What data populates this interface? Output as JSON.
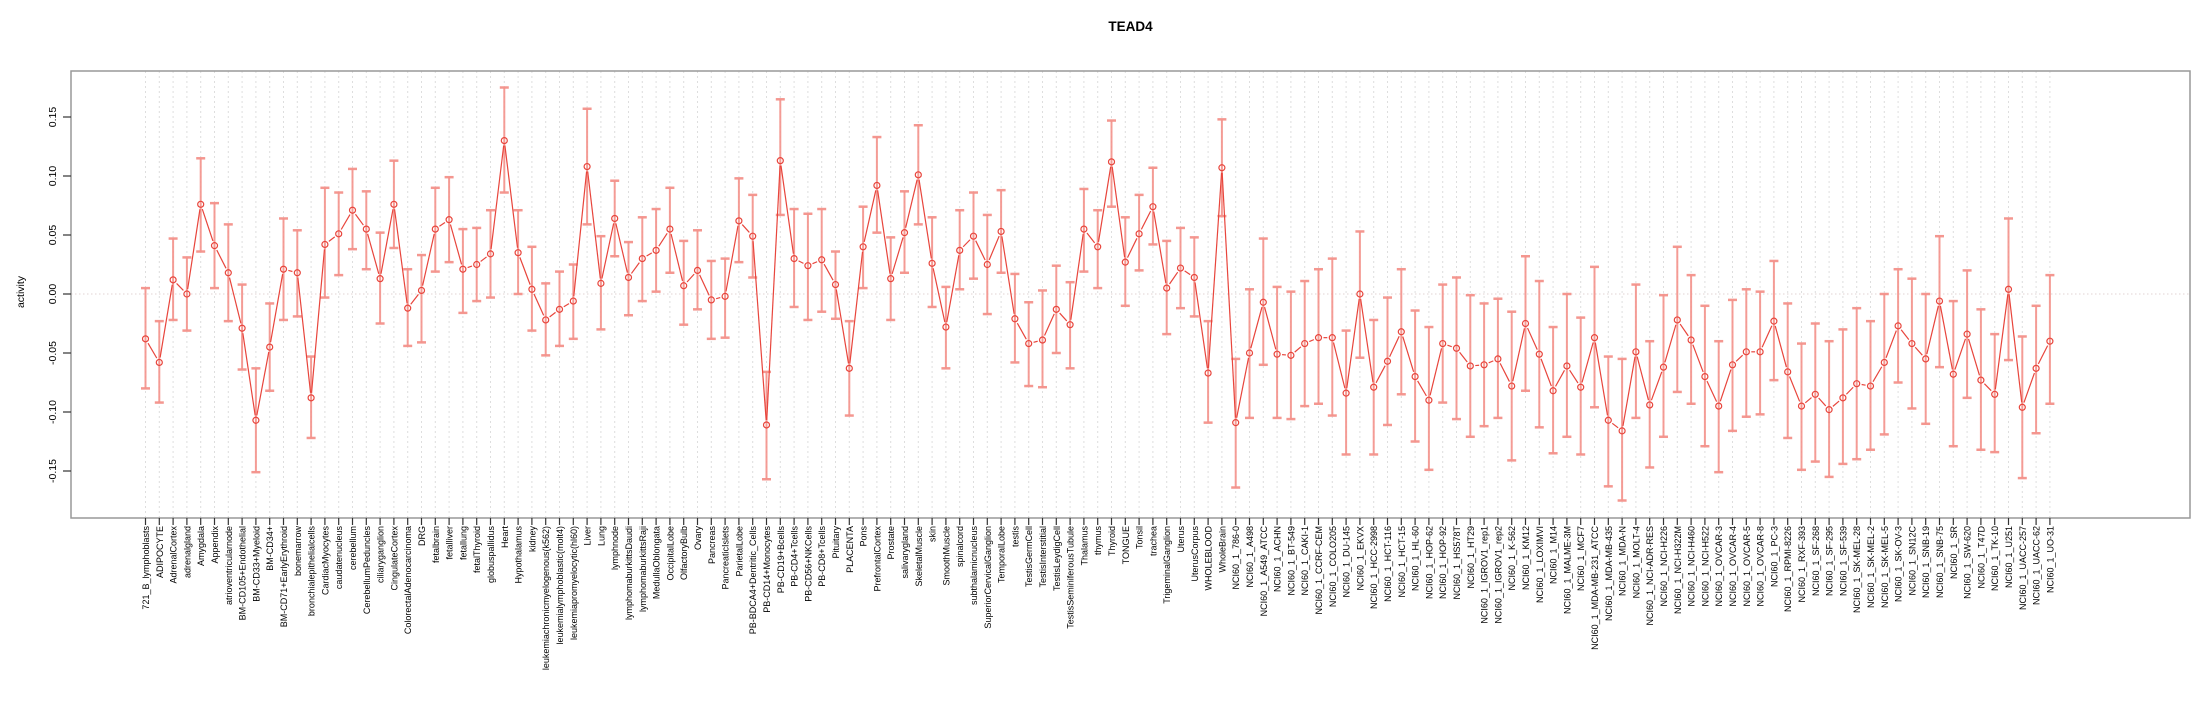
{
  "title": "TEAD4",
  "colors": {
    "point": "#e8453c",
    "line": "#e8453c",
    "error_bar": "#f4928b",
    "grid": "#dedede",
    "zero_line": "#e2d3d3",
    "box_border": "#999999",
    "tick": "#333333",
    "label_text": "#000000"
  },
  "chart_data": {
    "type": "line",
    "title": "TEAD4",
    "xlabel": "",
    "ylabel": "activity",
    "ylim": [
      -0.185,
      0.189
    ],
    "yticks": [
      -0.15,
      -0.1,
      -0.05,
      0.0,
      0.05,
      0.1,
      0.15
    ],
    "ytick_labels": [
      "-0.15",
      "-0.10",
      "-0.05",
      "0.00",
      "0.05",
      "0.10",
      "0.15"
    ],
    "grid": true,
    "legend": "none",
    "marker": "open-circle",
    "error_bars": true,
    "categories": [
      "721_B_lymphoblasts",
      "ADIPOCYTE",
      "AdrenalCortex",
      "adrenalgland",
      "Amygdala",
      "Appendix",
      "atrioventricularnode",
      "BM-CD105+Endothelial",
      "BM-CD33+Myeloid",
      "BM-CD34+",
      "BM-CD71+EarlyErythroid",
      "bonemarrow",
      "bronchialepithelialcells",
      "CardiacMyocytes",
      "caudatenucleus",
      "cerebellum",
      "CerebellumPeduncles",
      "ciliaryganglion",
      "CingulateCortex",
      "ColorectalAdenocarcinoma",
      "DRG",
      "fetalbrain",
      "fetalliver",
      "fetallung",
      "fetalThyroid",
      "globuspallidus",
      "Heart",
      "Hypothalamus",
      "kidney",
      "leukemiachronicmyelogenous(k562)",
      "leukemialymphoblastic(molt4)",
      "leukemiapromyelocytic(hl60)",
      "Liver",
      "Lung",
      "lymphnode",
      "lymphomaburkittsDaudi",
      "lymphomaburkittsRaji",
      "MedullaOblongata",
      "OccipitalLobe",
      "OlfactoryBulb",
      "Ovary",
      "Pancreas",
      "PancreaticIslets",
      "ParietalLobe",
      "PB-BDCA4+Dentritic_Cells",
      "PB-CD14+Monocytes",
      "PB-CD19+Bcells",
      "PB-CD4+Tcells",
      "PB-CD56+NKCells",
      "PB-CD8+Tcells",
      "Pituitary",
      "PLACENTA",
      "Pons",
      "PrefrontalCortex",
      "Prostate",
      "salivarygland",
      "SkeletalMuscle",
      "skin",
      "SmoothMuscle",
      "spinalcord",
      "subthalamicnucleus",
      "SuperiorCervicalGanglion",
      "TemporalLobe",
      "testis",
      "TestisGermCell",
      "TestisInterstitial",
      "TestisLeydigCell",
      "TestisSeminiferousTubule",
      "Thalamus",
      "thymus",
      "Thyroid",
      "TONGUE",
      "Tonsil",
      "trachea",
      "TrigeminalGanglion",
      "Uterus",
      "UterusCorpus",
      "WHOLEBLOOD",
      "WholeBrain",
      "NCI60_1_786-0",
      "NCI60_1_A498",
      "NCI60_1_A549_ATCC",
      "NCI60_1_ACHN",
      "NCI60_1_BT-549",
      "NCI60_1_CAKI-1",
      "NCI60_1_CCRF-CEM",
      "NCI60_1_COLO205",
      "NCI60_1_DU-145",
      "NCI60_1_EKVX",
      "NCI60_1_HCC-2998",
      "NCI60_1_HCT-116",
      "NCI60_1_HCT-15",
      "NCI60_1_HL-60",
      "NCI60_1_HOP-62",
      "NCI60_1_HOP-92",
      "NCI60_1_HS578T",
      "NCI60_1_HT29",
      "NCI60_1_IGROV1_rep1",
      "NCI60_1_IGROV1_rep2",
      "NCI60_1_K-562",
      "NCI60_1_KM12",
      "NCI60_1_LOXIMVI",
      "NCI60_1_M14",
      "NCI60_1_MALME-3M",
      "NCI60_1_MCF7",
      "NCI60_1_MDA-MB-231_ATCC",
      "NCI60_1_MDA-MB-435",
      "NCI60_1_MDA-N",
      "NCI60_1_MOLT-4",
      "NCI60_1_NCI-ADR-RES",
      "NCI60_1_NCI-H226",
      "NCI60_1_NCI-H322M",
      "NCI60_1_NCI-H460",
      "NCI60_1_NCI-H522",
      "NCI60_1_OVCAR-3",
      "NCI60_1_OVCAR-4",
      "NCI60_1_OVCAR-5",
      "NCI60_1_OVCAR-8",
      "NCI60_1_PC-3",
      "NCI60_1_RPMI-8226",
      "NCI60_1_RXF-393",
      "NCI60_1_SF-268",
      "NCI60_1_SF-295",
      "NCI60_1_SF-539",
      "NCI60_1_SK-MEL-28",
      "NCI60_1_SK-MEL-2",
      "NCI60_1_SK-MEL-5",
      "NCI60_1_SK-OV-3",
      "NCI60_1_SN12C",
      "NCI60_1_SNB-19",
      "NCI60_1_SNB-75",
      "NCI60_1_SR",
      "NCI60_1_SW-620",
      "NCI60_1_T47D",
      "NCI60_1_TK-10",
      "NCI60_1_U251",
      "NCI60_1_UACC-257",
      "NCI60_1_UACC-62",
      "NCI60_1_UO-31"
    ],
    "series": [
      {
        "name": "activity",
        "values": [
          -0.038,
          -0.058,
          0.012,
          0.0,
          0.076,
          0.041,
          0.018,
          -0.029,
          -0.107,
          -0.045,
          0.021,
          0.018,
          -0.088,
          0.042,
          0.051,
          0.071,
          0.055,
          0.013,
          0.076,
          -0.012,
          0.003,
          0.055,
          0.063,
          0.021,
          0.025,
          0.034,
          0.13,
          0.035,
          0.004,
          -0.022,
          -0.013,
          -0.006,
          0.108,
          0.009,
          0.064,
          0.014,
          0.03,
          0.037,
          0.055,
          0.007,
          0.02,
          -0.005,
          -0.002,
          0.062,
          0.049,
          -0.111,
          0.113,
          0.03,
          0.024,
          0.029,
          0.008,
          -0.063,
          0.04,
          0.092,
          0.013,
          0.052,
          0.101,
          0.026,
          -0.028,
          0.037,
          0.049,
          0.025,
          0.053,
          -0.021,
          -0.042,
          -0.039,
          -0.013,
          -0.026,
          0.055,
          0.04,
          0.112,
          0.027,
          0.051,
          0.074,
          0.005,
          0.022,
          0.014,
          -0.067,
          0.107,
          -0.109,
          -0.05,
          -0.007,
          -0.051,
          -0.052,
          -0.042,
          -0.037,
          -0.037,
          -0.084,
          0.0,
          -0.079,
          -0.057,
          -0.032,
          -0.07,
          -0.09,
          -0.042,
          -0.046,
          -0.061,
          -0.06,
          -0.055,
          -0.078,
          -0.025,
          -0.051,
          -0.082,
          -0.061,
          -0.079,
          -0.037,
          -0.107,
          -0.116,
          -0.049,
          -0.094,
          -0.062,
          -0.022,
          -0.039,
          -0.07,
          -0.095,
          -0.06,
          -0.049,
          -0.049,
          -0.023,
          -0.066,
          -0.095,
          -0.085,
          -0.098,
          -0.088,
          -0.076,
          -0.078,
          -0.058,
          -0.027,
          -0.042,
          -0.055,
          -0.006,
          -0.068,
          -0.034,
          -0.073,
          -0.085,
          0.004,
          -0.096,
          -0.063,
          -0.04
        ],
        "ci_low": [
          -0.08,
          -0.092,
          -0.022,
          -0.031,
          0.036,
          0.005,
          -0.023,
          -0.064,
          -0.151,
          -0.082,
          -0.022,
          -0.019,
          -0.122,
          -0.003,
          0.016,
          0.038,
          0.021,
          -0.025,
          0.039,
          -0.044,
          -0.041,
          0.019,
          0.027,
          -0.016,
          -0.006,
          -0.003,
          0.086,
          0.0,
          -0.031,
          -0.052,
          -0.044,
          -0.038,
          0.059,
          -0.03,
          0.032,
          -0.018,
          -0.006,
          0.002,
          0.018,
          -0.026,
          -0.013,
          -0.038,
          -0.037,
          0.027,
          0.014,
          -0.157,
          0.067,
          -0.011,
          -0.022,
          -0.015,
          -0.021,
          -0.103,
          0.005,
          0.052,
          -0.022,
          0.018,
          0.059,
          -0.011,
          -0.063,
          0.004,
          0.013,
          -0.017,
          0.018,
          -0.058,
          -0.078,
          -0.079,
          -0.05,
          -0.063,
          0.019,
          0.005,
          0.074,
          -0.01,
          0.02,
          0.042,
          -0.034,
          -0.012,
          -0.019,
          -0.109,
          0.066,
          -0.164,
          -0.105,
          -0.06,
          -0.105,
          -0.106,
          -0.095,
          -0.093,
          -0.103,
          -0.136,
          -0.054,
          -0.136,
          -0.111,
          -0.085,
          -0.125,
          -0.149,
          -0.092,
          -0.106,
          -0.121,
          -0.112,
          -0.105,
          -0.141,
          -0.082,
          -0.113,
          -0.135,
          -0.121,
          -0.136,
          -0.096,
          -0.163,
          -0.175,
          -0.105,
          -0.147,
          -0.121,
          -0.083,
          -0.093,
          -0.129,
          -0.151,
          -0.116,
          -0.104,
          -0.102,
          -0.073,
          -0.122,
          -0.149,
          -0.142,
          -0.155,
          -0.144,
          -0.14,
          -0.132,
          -0.119,
          -0.075,
          -0.097,
          -0.11,
          -0.062,
          -0.129,
          -0.088,
          -0.132,
          -0.134,
          -0.056,
          -0.156,
          -0.118,
          -0.093
        ],
        "ci_high": [
          0.005,
          -0.023,
          0.047,
          0.031,
          0.115,
          0.077,
          0.059,
          0.008,
          -0.063,
          -0.008,
          0.064,
          0.054,
          -0.053,
          0.09,
          0.086,
          0.106,
          0.087,
          0.052,
          0.113,
          0.021,
          0.033,
          0.09,
          0.099,
          0.055,
          0.056,
          0.071,
          0.175,
          0.071,
          0.04,
          0.009,
          0.019,
          0.025,
          0.157,
          0.049,
          0.096,
          0.044,
          0.065,
          0.072,
          0.09,
          0.045,
          0.054,
          0.028,
          0.03,
          0.098,
          0.084,
          -0.066,
          0.165,
          0.072,
          0.068,
          0.072,
          0.036,
          -0.023,
          0.074,
          0.133,
          0.048,
          0.087,
          0.143,
          0.065,
          0.006,
          0.071,
          0.086,
          0.067,
          0.088,
          0.017,
          -0.007,
          0.003,
          0.024,
          0.01,
          0.089,
          0.071,
          0.147,
          0.065,
          0.084,
          0.107,
          0.045,
          0.056,
          0.048,
          -0.023,
          0.148,
          -0.055,
          0.004,
          0.047,
          0.006,
          0.002,
          0.011,
          0.021,
          0.03,
          -0.031,
          0.053,
          -0.022,
          -0.003,
          0.021,
          -0.014,
          -0.028,
          0.008,
          0.014,
          -0.001,
          -0.008,
          -0.004,
          -0.015,
          0.032,
          0.011,
          -0.028,
          0.0,
          -0.02,
          0.023,
          -0.053,
          -0.055,
          0.008,
          -0.04,
          -0.001,
          0.04,
          0.016,
          -0.01,
          -0.04,
          -0.005,
          0.004,
          0.002,
          0.028,
          -0.008,
          -0.042,
          -0.025,
          -0.04,
          -0.03,
          -0.012,
          -0.023,
          0.0,
          0.021,
          0.013,
          0.0,
          0.049,
          -0.006,
          0.02,
          -0.013,
          -0.034,
          0.064,
          -0.036,
          -0.01,
          0.016
        ]
      }
    ]
  }
}
